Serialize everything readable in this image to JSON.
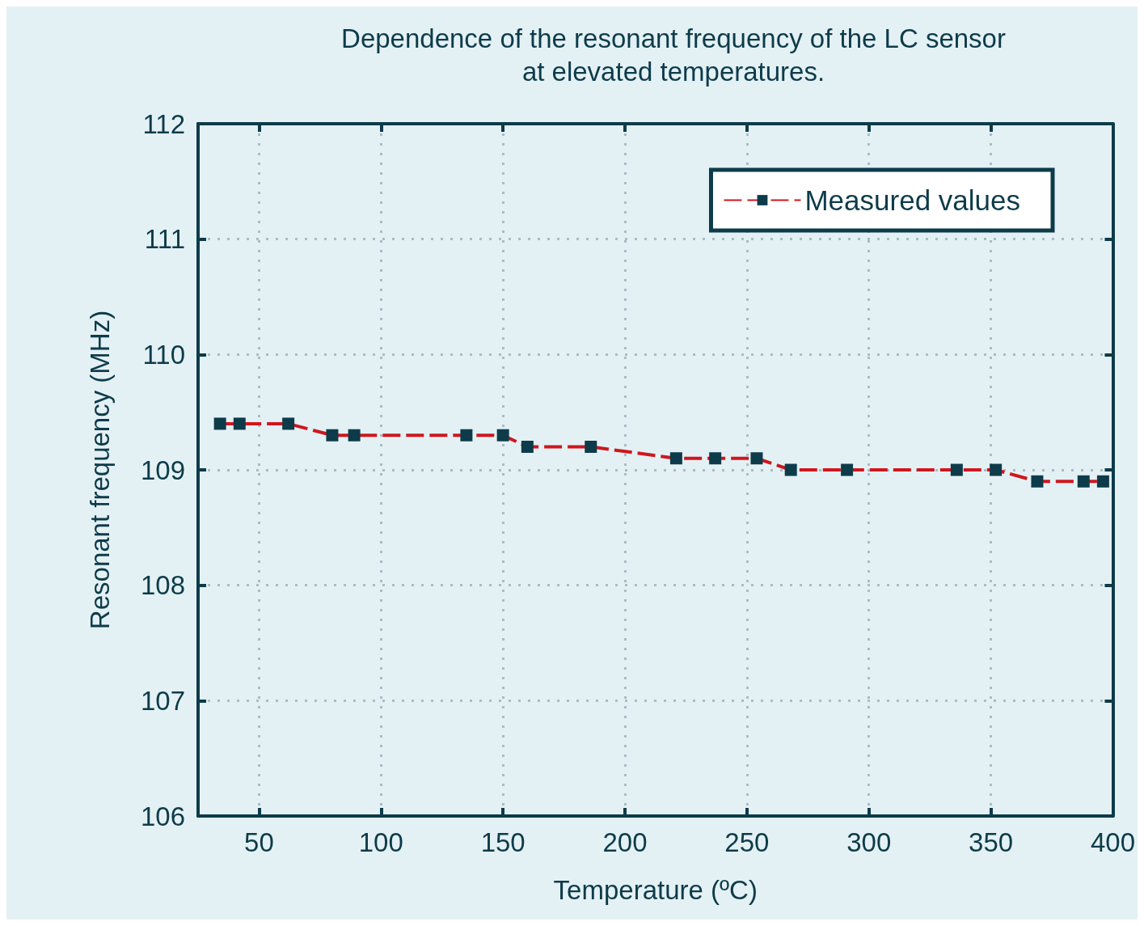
{
  "chart_data": {
    "type": "line",
    "title": "Dependence of the resonant frequency of the LC sensor\nat elevated temperatures.",
    "xlabel": "Temperature (ºC)",
    "ylabel": "Resonant frequency (MHz)",
    "x": [
      34,
      42,
      62,
      80,
      89,
      135,
      150,
      160,
      186,
      221,
      237,
      254,
      268,
      291,
      336,
      352,
      369,
      388,
      396
    ],
    "series": [
      {
        "name": "Measured values",
        "color": "#d0161e",
        "values": [
          109.4,
          109.4,
          109.4,
          109.3,
          109.3,
          109.3,
          109.3,
          109.2,
          109.2,
          109.1,
          109.1,
          109.1,
          109.0,
          109.0,
          109.0,
          109.0,
          108.9,
          108.9,
          108.9
        ]
      }
    ],
    "xlim": [
      25,
      400
    ],
    "xticks": [
      50,
      100,
      150,
      200,
      250,
      300,
      350,
      400
    ],
    "ylim": [
      106,
      112
    ],
    "yticks": [
      106,
      107,
      108,
      109,
      110,
      111,
      112
    ],
    "grid": true,
    "legend": "top right",
    "marker": "square",
    "line_style": "dashed"
  }
}
